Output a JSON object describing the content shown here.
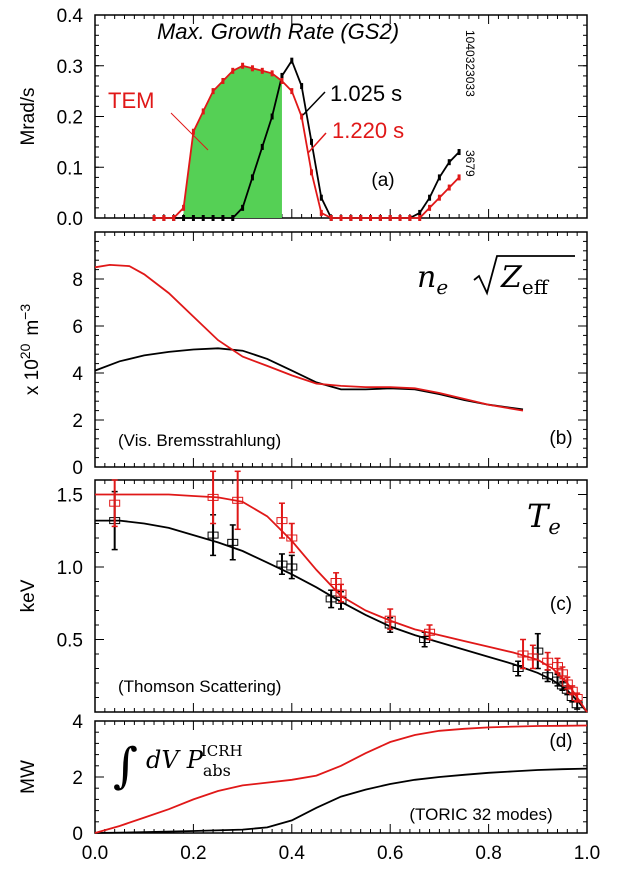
{
  "chart_data": [
    {
      "type": "line",
      "panel": "a",
      "title": "Max. Growth Rate (GS2)",
      "ylabel": "Mrad/s",
      "xlim": [
        0.0,
        1.0
      ],
      "ylim": [
        0.0,
        0.4
      ],
      "yticks": [
        "0.0",
        "0.1",
        "0.2",
        "0.3",
        "0.4"
      ],
      "side_text": [
        "1040323033",
        "3679"
      ],
      "panel_label": "(a)",
      "annotation": "TEM",
      "series": [
        {
          "name": "1.025 s",
          "color": "#000000",
          "x": [
            0.12,
            0.14,
            0.16,
            0.18,
            0.2,
            0.22,
            0.24,
            0.26,
            0.28,
            0.3,
            0.32,
            0.34,
            0.36,
            0.38,
            0.4,
            0.42,
            0.44,
            0.46,
            0.48,
            0.5,
            0.52,
            0.54,
            0.56,
            0.58,
            0.6,
            0.62,
            0.64,
            0.66,
            0.68,
            0.7,
            0.72,
            0.74
          ],
          "y": [
            0,
            0,
            0,
            0,
            0,
            0,
            0,
            0,
            0,
            0.02,
            0.08,
            0.14,
            0.2,
            0.28,
            0.31,
            0.26,
            0.15,
            0.04,
            0,
            0,
            0,
            0,
            0,
            0,
            0,
            0,
            0,
            0.01,
            0.04,
            0.08,
            0.11,
            0.13
          ]
        },
        {
          "name": "1.220 s",
          "color": "#e01818",
          "x": [
            0.12,
            0.14,
            0.16,
            0.18,
            0.2,
            0.22,
            0.24,
            0.26,
            0.28,
            0.3,
            0.32,
            0.34,
            0.36,
            0.38,
            0.4,
            0.42,
            0.44,
            0.46,
            0.48,
            0.5,
            0.52,
            0.54,
            0.56,
            0.58,
            0.6,
            0.62,
            0.64,
            0.66,
            0.68,
            0.7,
            0.72,
            0.74
          ],
          "y": [
            0,
            0,
            0,
            0.02,
            0.17,
            0.21,
            0.25,
            0.27,
            0.29,
            0.3,
            0.295,
            0.29,
            0.285,
            0.27,
            0.25,
            0.2,
            0.09,
            0.01,
            0,
            0,
            0,
            0,
            0,
            0,
            0,
            0,
            0,
            0,
            0.02,
            0.04,
            0.06,
            0.08
          ]
        }
      ],
      "shaded_region": {
        "color": "#55d055",
        "x_from": 0.18,
        "x_to": 0.38
      }
    },
    {
      "type": "line",
      "panel": "b",
      "ylabel": "x 10^20 m^-3",
      "ylabel_base": "x 10",
      "ylabel_exp": "20",
      "ylabel_unit": "m",
      "ylabel_unit_exp": "−3",
      "xlim": [
        0.0,
        1.0
      ],
      "ylim": [
        0,
        10
      ],
      "yticks": [
        "0",
        "2",
        "4",
        "6",
        "8"
      ],
      "quantity": {
        "base": "n",
        "sub": "e",
        "inner": "Z",
        "inner_sub": "eff"
      },
      "panel_label": "(b)",
      "note": "(Vis. Bremsstrahlung)",
      "series": [
        {
          "color": "#000000",
          "x": [
            0.0,
            0.05,
            0.1,
            0.15,
            0.2,
            0.25,
            0.3,
            0.35,
            0.4,
            0.45,
            0.5,
            0.55,
            0.6,
            0.65,
            0.7,
            0.75,
            0.8,
            0.87
          ],
          "y": [
            4.1,
            4.5,
            4.75,
            4.9,
            5.0,
            5.05,
            4.95,
            4.6,
            4.1,
            3.6,
            3.3,
            3.3,
            3.35,
            3.3,
            3.1,
            2.85,
            2.65,
            2.45
          ]
        },
        {
          "color": "#e01818",
          "x": [
            0.0,
            0.03,
            0.07,
            0.1,
            0.15,
            0.2,
            0.25,
            0.3,
            0.35,
            0.4,
            0.45,
            0.5,
            0.55,
            0.6,
            0.65,
            0.7,
            0.75,
            0.8,
            0.87
          ],
          "y": [
            8.5,
            8.6,
            8.55,
            8.2,
            7.4,
            6.4,
            5.4,
            4.7,
            4.3,
            3.9,
            3.55,
            3.45,
            3.4,
            3.4,
            3.35,
            3.15,
            2.9,
            2.65,
            2.4
          ]
        }
      ]
    },
    {
      "type": "line",
      "panel": "c",
      "ylabel": "keV",
      "xlim": [
        0.0,
        1.0
      ],
      "ylim": [
        0.0,
        1.6
      ],
      "yticks": [
        "0.5",
        "1.0",
        "1.5"
      ],
      "quantity": {
        "base": "T",
        "sub": "e"
      },
      "panel_label": "(c)",
      "note": "(Thomson Scattering)",
      "series": [
        {
          "color": "#000000",
          "x": [
            0.0,
            0.05,
            0.1,
            0.15,
            0.2,
            0.25,
            0.3,
            0.35,
            0.4,
            0.45,
            0.5,
            0.55,
            0.6,
            0.65,
            0.7,
            0.75,
            0.8,
            0.85,
            0.9,
            0.93,
            0.96,
            0.98,
            1.0
          ],
          "y": [
            1.32,
            1.32,
            1.3,
            1.27,
            1.22,
            1.17,
            1.11,
            1.03,
            0.95,
            0.86,
            0.76,
            0.67,
            0.59,
            0.53,
            0.48,
            0.43,
            0.38,
            0.33,
            0.27,
            0.22,
            0.15,
            0.08,
            0.0
          ],
          "points": {
            "x": [
              0.04,
              0.24,
              0.28,
              0.38,
              0.4,
              0.48,
              0.5,
              0.6,
              0.67,
              0.86,
              0.9,
              0.92,
              0.94,
              0.95,
              0.96,
              0.97,
              0.98
            ],
            "y": [
              1.32,
              1.22,
              1.17,
              1.02,
              1.0,
              0.78,
              0.77,
              0.6,
              0.5,
              0.3,
              0.42,
              0.25,
              0.22,
              0.18,
              0.15,
              0.1,
              0.05
            ],
            "err": [
              0.2,
              0.14,
              0.12,
              0.07,
              0.08,
              0.06,
              0.06,
              0.05,
              0.05,
              0.05,
              0.12,
              0.04,
              0.04,
              0.03,
              0.03,
              0.03,
              0.03
            ]
          }
        },
        {
          "color": "#e01818",
          "x": [
            0.0,
            0.05,
            0.1,
            0.15,
            0.2,
            0.25,
            0.3,
            0.35,
            0.4,
            0.45,
            0.5,
            0.55,
            0.6,
            0.65,
            0.7,
            0.75,
            0.8,
            0.85,
            0.9,
            0.93,
            0.96,
            0.98,
            1.0
          ],
          "y": [
            1.5,
            1.5,
            1.5,
            1.5,
            1.49,
            1.48,
            1.45,
            1.35,
            1.18,
            0.98,
            0.8,
            0.7,
            0.63,
            0.57,
            0.53,
            0.49,
            0.45,
            0.41,
            0.36,
            0.3,
            0.2,
            0.1,
            0.0
          ],
          "points": {
            "x": [
              0.04,
              0.24,
              0.29,
              0.38,
              0.4,
              0.49,
              0.5,
              0.6,
              0.68,
              0.87,
              0.89,
              0.92,
              0.94,
              0.95,
              0.96,
              0.97,
              0.98
            ],
            "y": [
              1.44,
              1.48,
              1.46,
              1.32,
              1.2,
              0.9,
              0.82,
              0.64,
              0.55,
              0.4,
              0.38,
              0.35,
              0.32,
              0.27,
              0.2,
              0.15,
              0.1
            ],
            "err": [
              0.16,
              0.18,
              0.2,
              0.12,
              0.1,
              0.06,
              0.06,
              0.07,
              0.05,
              0.1,
              0.08,
              0.06,
              0.05,
              0.04,
              0.04,
              0.03,
              0.03
            ]
          }
        }
      ]
    },
    {
      "type": "line",
      "panel": "d",
      "ylabel": "MW",
      "xlim": [
        0.0,
        1.0
      ],
      "ylim": [
        0,
        4
      ],
      "yticks": [
        "0",
        "2",
        "4"
      ],
      "xticks": [
        "0.0",
        "0.2",
        "0.4",
        "0.6",
        "0.8",
        "1.0"
      ],
      "quantity": {
        "integral": "∫",
        "d": "dV",
        "P": "P",
        "sub": "abs",
        "sup": "ICRH"
      },
      "panel_label": "(d)",
      "note": "(TORIC 32 modes)",
      "series": [
        {
          "color": "#000000",
          "x": [
            0.0,
            0.1,
            0.2,
            0.3,
            0.35,
            0.4,
            0.45,
            0.5,
            0.55,
            0.6,
            0.65,
            0.7,
            0.75,
            0.8,
            0.85,
            0.9,
            0.95,
            1.0
          ],
          "y": [
            0.0,
            0.03,
            0.07,
            0.12,
            0.2,
            0.45,
            0.9,
            1.3,
            1.55,
            1.75,
            1.9,
            2.0,
            2.08,
            2.15,
            2.2,
            2.25,
            2.28,
            2.3
          ]
        },
        {
          "color": "#e01818",
          "x": [
            0.0,
            0.05,
            0.1,
            0.15,
            0.2,
            0.25,
            0.3,
            0.35,
            0.4,
            0.45,
            0.5,
            0.55,
            0.6,
            0.65,
            0.7,
            0.75,
            0.8,
            0.85,
            0.9,
            0.95,
            1.0
          ],
          "y": [
            0.0,
            0.25,
            0.55,
            0.85,
            1.2,
            1.5,
            1.7,
            1.8,
            1.9,
            2.05,
            2.4,
            2.85,
            3.25,
            3.5,
            3.65,
            3.72,
            3.77,
            3.8,
            3.82,
            3.83,
            3.84
          ]
        }
      ]
    }
  ]
}
